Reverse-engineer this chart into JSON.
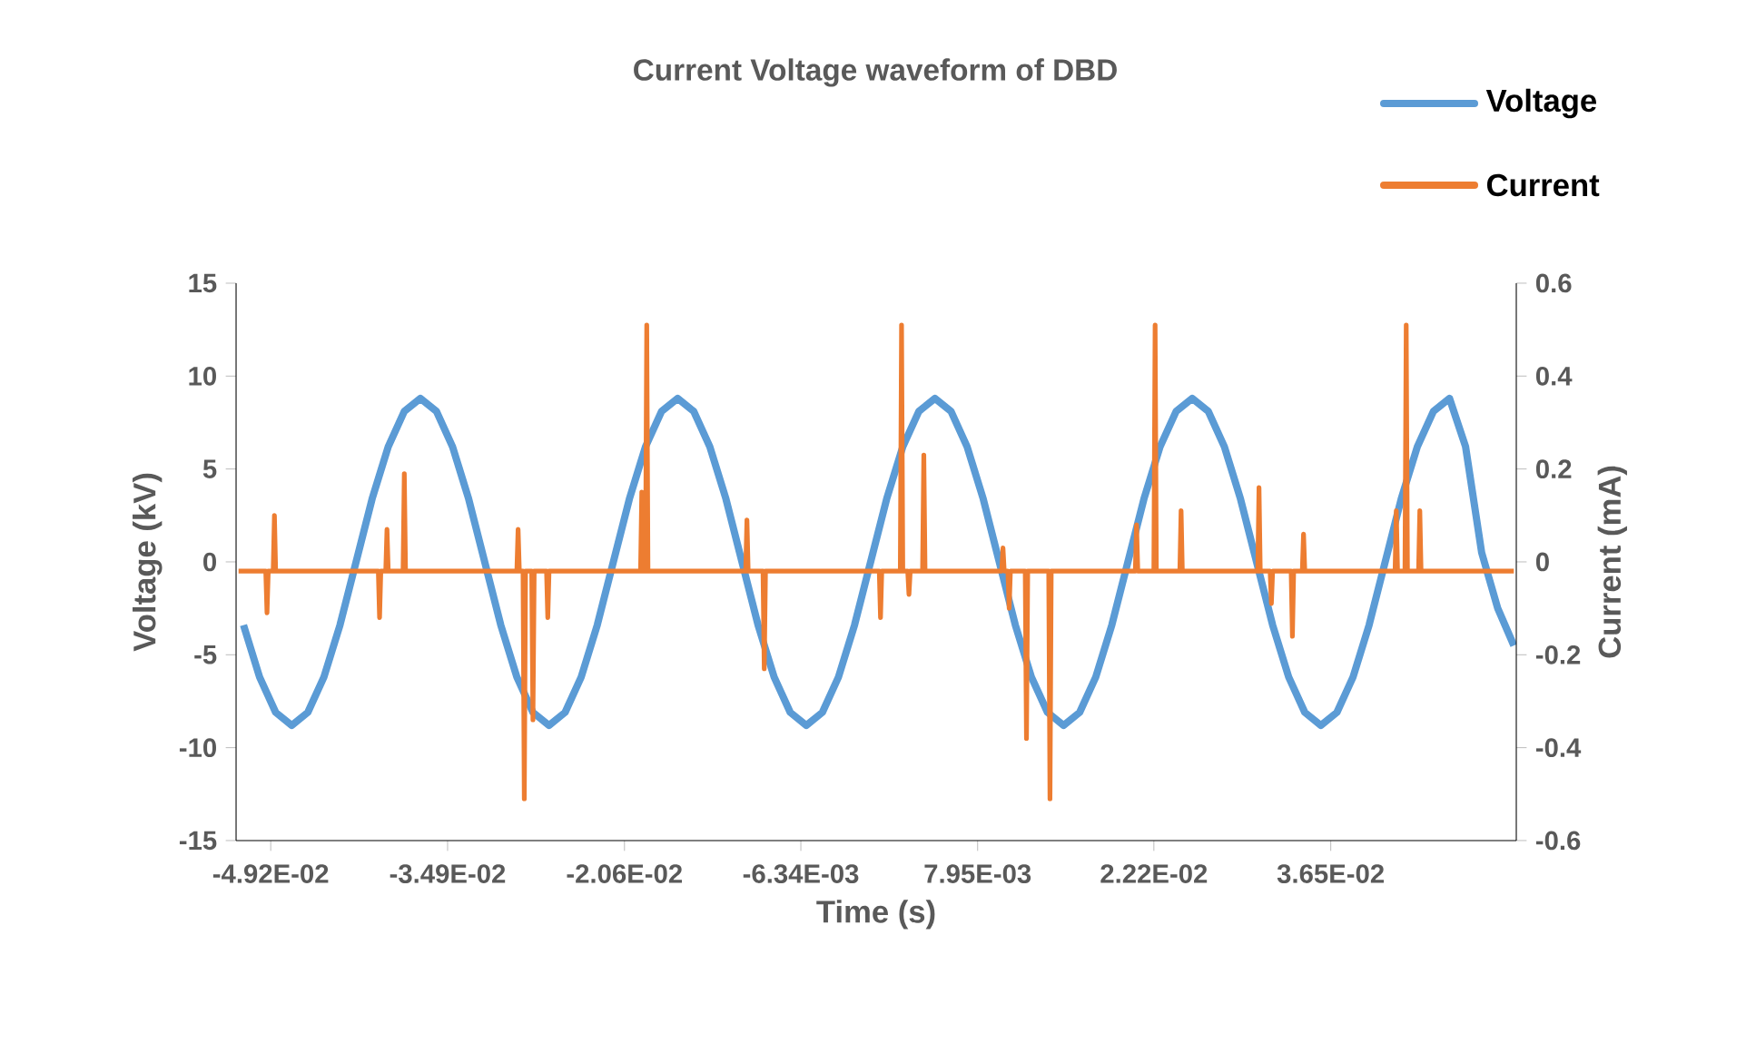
{
  "chart_data": {
    "type": "line",
    "title": "Current Voltage waveform of DBD",
    "xlabel": "Time (s)",
    "ylabel": "Voltage (kV)",
    "y2label": "Current (mA)",
    "xlim": [
      -0.052,
      0.0515
    ],
    "xticks": [
      {
        "value": -0.0492,
        "label": "-4.92E-02"
      },
      {
        "value": -0.0349,
        "label": "-3.49E-02"
      },
      {
        "value": -0.0206,
        "label": "-2.06E-02"
      },
      {
        "value": -0.00634,
        "label": "-6.34E-03"
      },
      {
        "value": 0.00795,
        "label": "7.95E-03"
      },
      {
        "value": 0.0222,
        "label": "2.22E-02"
      },
      {
        "value": 0.0365,
        "label": "3.65E-02"
      }
    ],
    "ylim": [
      -15,
      15
    ],
    "yticks": [
      -15,
      -10,
      -5,
      0,
      5,
      10,
      15
    ],
    "y2lim": [
      -0.6,
      0.6
    ],
    "y2ticks": [
      -0.6,
      -0.4,
      -0.2,
      0,
      0.2,
      0.4,
      0.6
    ],
    "legend": "top right",
    "series": [
      {
        "name": "Voltage",
        "color": "#5b9bd5",
        "x": [
          -0.0514,
          -0.0501,
          -0.0488,
          -0.0475,
          -0.0462,
          -0.0449,
          -0.0436,
          -0.0423,
          -0.041,
          -0.0397,
          -0.0384,
          -0.0371,
          -0.0358,
          -0.0345,
          -0.0332,
          -0.0319,
          -0.0306,
          -0.0293,
          -0.028,
          -0.0267,
          -0.0254,
          -0.0241,
          -0.0228,
          -0.0215,
          -0.0202,
          -0.0189,
          -0.0176,
          -0.0163,
          -0.015,
          -0.0137,
          -0.0124,
          -0.0111,
          -0.0098,
          -0.0085,
          -0.0072,
          -0.0059,
          -0.0046,
          -0.0033,
          -0.002,
          -0.0007,
          0.0006,
          0.0019,
          0.0032,
          0.0045,
          0.0058,
          0.0071,
          0.0084,
          0.0097,
          0.011,
          0.0123,
          0.0136,
          0.0149,
          0.0162,
          0.0175,
          0.0188,
          0.0201,
          0.0214,
          0.0227,
          0.024,
          0.0253,
          0.0266,
          0.0279,
          0.0292,
          0.0305,
          0.0318,
          0.0331,
          0.0344,
          0.0357,
          0.037,
          0.0383,
          0.0396,
          0.0409,
          0.0422,
          0.0435,
          0.0448,
          0.0461,
          0.0474,
          0.0487,
          0.05,
          0.0513
        ],
        "values": [
          -3.4,
          -6.2,
          -8.1,
          -8.8,
          -8.1,
          -6.2,
          -3.4,
          0,
          3.4,
          6.2,
          8.1,
          8.8,
          8.1,
          6.2,
          3.4,
          0,
          -3.4,
          -6.2,
          -8.1,
          -8.8,
          -8.1,
          -6.2,
          -3.4,
          0,
          3.4,
          6.2,
          8.1,
          8.8,
          8.1,
          6.2,
          3.4,
          0,
          -3.4,
          -6.2,
          -8.1,
          -8.8,
          -8.1,
          -6.2,
          -3.4,
          0,
          3.4,
          6.2,
          8.1,
          8.8,
          8.1,
          6.2,
          3.4,
          0,
          -3.4,
          -6.2,
          -8.1,
          -8.8,
          -8.1,
          -6.2,
          -3.4,
          0,
          3.4,
          6.2,
          8.1,
          8.8,
          8.1,
          6.2,
          3.4,
          0,
          -3.4,
          -6.2,
          -8.1,
          -8.8,
          -8.1,
          -6.2,
          -3.4,
          0,
          3.4,
          6.2,
          8.1,
          8.8,
          6.2,
          0.5,
          -2.5,
          -4.5
        ]
      },
      {
        "name": "Current",
        "color": "#ed7d31",
        "axis": "y2",
        "x": [
          -0.0518,
          -0.0496,
          -0.0495,
          -0.0494,
          -0.049,
          -0.0489,
          -0.0488,
          -0.0405,
          -0.0404,
          -0.0403,
          -0.0399,
          -0.0398,
          -0.0397,
          -0.0385,
          -0.0384,
          -0.0383,
          -0.0293,
          -0.0292,
          -0.0291,
          -0.0288,
          -0.0287,
          -0.0286,
          -0.0281,
          -0.028,
          -0.0279,
          -0.0269,
          -0.0268,
          -0.0267,
          -0.0193,
          -0.0192,
          -0.0191,
          -0.0189,
          -0.0188,
          -0.0187,
          -0.0108,
          -0.0107,
          -0.0106,
          -0.0094,
          -0.0093,
          -0.0092,
          0.0,
          0.0001,
          0.0002,
          0.0017,
          0.0018,
          0.0019,
          0.0023,
          0.0024,
          0.0025,
          0.0035,
          0.0036,
          0.0037,
          0.0099,
          0.01,
          0.0101,
          0.0104,
          0.0105,
          0.0106,
          0.0118,
          0.0119,
          0.012,
          0.0137,
          0.0138,
          0.0139,
          0.0207,
          0.0208,
          0.0209,
          0.0222,
          0.0223,
          0.0224,
          0.0243,
          0.0244,
          0.0245,
          0.0306,
          0.0307,
          0.0308,
          0.0316,
          0.0317,
          0.0318,
          0.0333,
          0.0334,
          0.0335,
          0.0342,
          0.0343,
          0.0344,
          0.0417,
          0.0418,
          0.0419,
          0.0425,
          0.0426,
          0.0427,
          0.0436,
          0.0437,
          0.0438,
          0.0513
        ],
        "values": [
          -0.02,
          -0.02,
          -0.11,
          -0.02,
          -0.02,
          0.1,
          -0.02,
          -0.02,
          -0.12,
          -0.02,
          -0.02,
          0.07,
          -0.02,
          -0.02,
          0.19,
          -0.02,
          -0.02,
          0.07,
          -0.02,
          -0.02,
          -0.51,
          -0.02,
          -0.02,
          -0.34,
          -0.02,
          -0.02,
          -0.12,
          -0.02,
          -0.02,
          0.15,
          -0.02,
          -0.02,
          0.51,
          -0.02,
          -0.02,
          0.09,
          -0.02,
          -0.02,
          -0.23,
          -0.02,
          -0.02,
          -0.12,
          -0.02,
          -0.02,
          0.51,
          -0.02,
          -0.02,
          -0.07,
          -0.02,
          -0.02,
          0.23,
          -0.02,
          -0.02,
          0.03,
          -0.02,
          -0.02,
          -0.1,
          -0.02,
          -0.02,
          -0.38,
          -0.02,
          -0.02,
          -0.51,
          -0.02,
          -0.02,
          0.08,
          -0.02,
          -0.02,
          0.51,
          -0.02,
          -0.02,
          0.11,
          -0.02,
          -0.02,
          0.16,
          -0.02,
          -0.02,
          -0.09,
          -0.02,
          -0.02,
          -0.16,
          -0.02,
          -0.02,
          0.06,
          -0.02,
          -0.02,
          0.11,
          -0.02,
          -0.02,
          0.51,
          -0.02,
          -0.02,
          0.11,
          -0.02,
          -0.02
        ]
      }
    ]
  }
}
